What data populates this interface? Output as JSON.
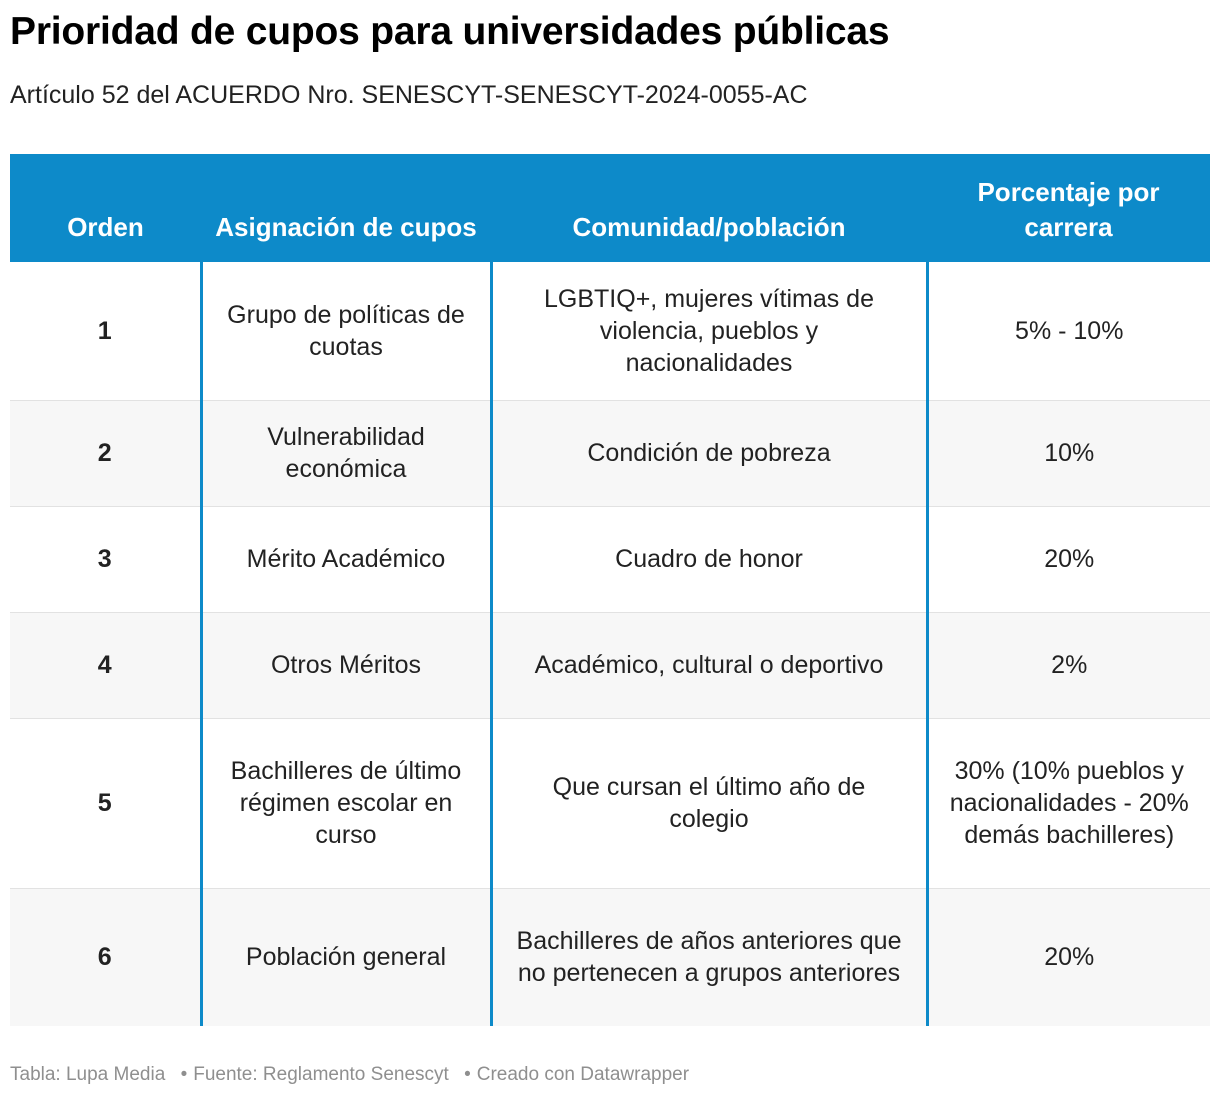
{
  "title": "Prioridad de cupos para universidades públicas",
  "subtitle": "Artículo 52 del ACUERDO Nro. SENESCYT-SENESCYT-2024-0055-AC",
  "colors": {
    "header_bg": "#0d8ac9",
    "header_text": "#ffffff",
    "stripe": "#f7f7f7",
    "footer_text": "#8f8f8f"
  },
  "chart_data": {
    "type": "table",
    "title": "Prioridad de cupos para universidades públicas",
    "subtitle": "Artículo 52 del ACUERDO Nro. SENESCYT-SENESCYT-2024-0055-AC",
    "columns": [
      "Orden",
      "Asignación de cupos",
      "Comunidad/población",
      "Porcentaje por carrera"
    ],
    "rows": [
      [
        "1",
        "Grupo de políticas de cuotas",
        "LGBTIQ+, mujeres vítimas de violencia, pueblos y nacionalidades",
        "5% - 10%"
      ],
      [
        "2",
        "Vulnerabilidad económica",
        "Condición de pobreza",
        "10%"
      ],
      [
        "3",
        "Mérito Académico",
        "Cuadro de honor",
        "20%"
      ],
      [
        "4",
        "Otros Méritos",
        "Académico, cultural o deportivo",
        "2%"
      ],
      [
        "5",
        "Bachilleres de último régimen escolar en curso",
        "Que cursan el último año de colegio",
        "30% (10% pueblos y nacionalidades - 20% demás bachilleres)"
      ],
      [
        "6",
        "Población general",
        "Bachilleres de años anteriores que no pertenecen a grupos anteriores",
        "20%"
      ]
    ]
  },
  "footer": {
    "table_credit": "Tabla: Lupa Media",
    "source": "Fuente: Reglamento Senescyt",
    "created_with": "Creado con Datawrapper",
    "separator": "•"
  }
}
